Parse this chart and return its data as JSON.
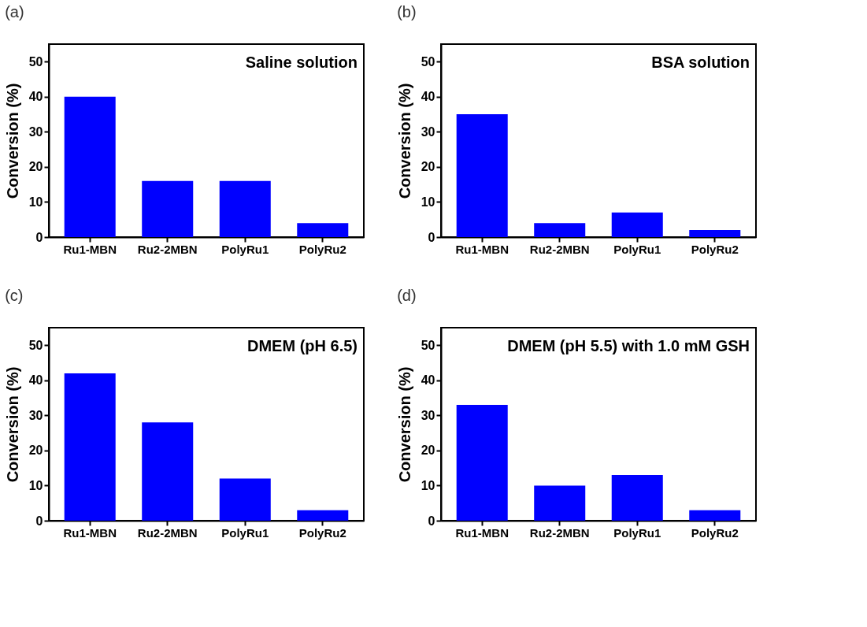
{
  "chart_data": [
    {
      "type": "bar",
      "title": "(a)",
      "ylabel": "Conversion (%)",
      "categories": [
        "Ru1-MBN",
        "Ru2-2MBN",
        "PolyRu1",
        "PolyRu2"
      ],
      "values": [
        40,
        16,
        16,
        4
      ],
      "color": "#0000ff",
      "ylim": [
        0,
        55
      ],
      "yticks": [
        0,
        10,
        20,
        30,
        40,
        50
      ],
      "annotations": [
        "Saline solution"
      ]
    },
    {
      "type": "bar",
      "title": "(b)",
      "ylabel": "Conversion (%)",
      "categories": [
        "Ru1-MBN",
        "Ru2-2MBN",
        "PolyRu1",
        "PolyRu2"
      ],
      "values": [
        35,
        4,
        7,
        2
      ],
      "color": "#0000ff",
      "ylim": [
        0,
        55
      ],
      "yticks": [
        0,
        10,
        20,
        30,
        40,
        50
      ],
      "annotations": [
        "BSA solution"
      ]
    },
    {
      "type": "bar",
      "title": "(c)",
      "ylabel": "Conversion (%)",
      "categories": [
        "Ru1-MBN",
        "Ru2-2MBN",
        "PolyRu1",
        "PolyRu2"
      ],
      "values": [
        42,
        28,
        12,
        3
      ],
      "color": "#0000ff",
      "ylim": [
        0,
        55
      ],
      "yticks": [
        0,
        10,
        20,
        30,
        40,
        50
      ],
      "annotations": [
        "DMEM (pH 6.5)"
      ]
    },
    {
      "type": "bar",
      "title": "(d)",
      "ylabel": "Conversion (%)",
      "categories": [
        "Ru1-MBN",
        "Ru2-2MBN",
        "PolyRu1",
        "PolyRu2"
      ],
      "values": [
        33,
        10,
        13,
        3
      ],
      "color": "#0000ff",
      "ylim": [
        0,
        55
      ],
      "yticks": [
        0,
        10,
        20,
        30,
        40,
        50
      ],
      "annotations": [
        "DMEM (pH 5.5) with 1.0 mM GSH"
      ]
    }
  ]
}
